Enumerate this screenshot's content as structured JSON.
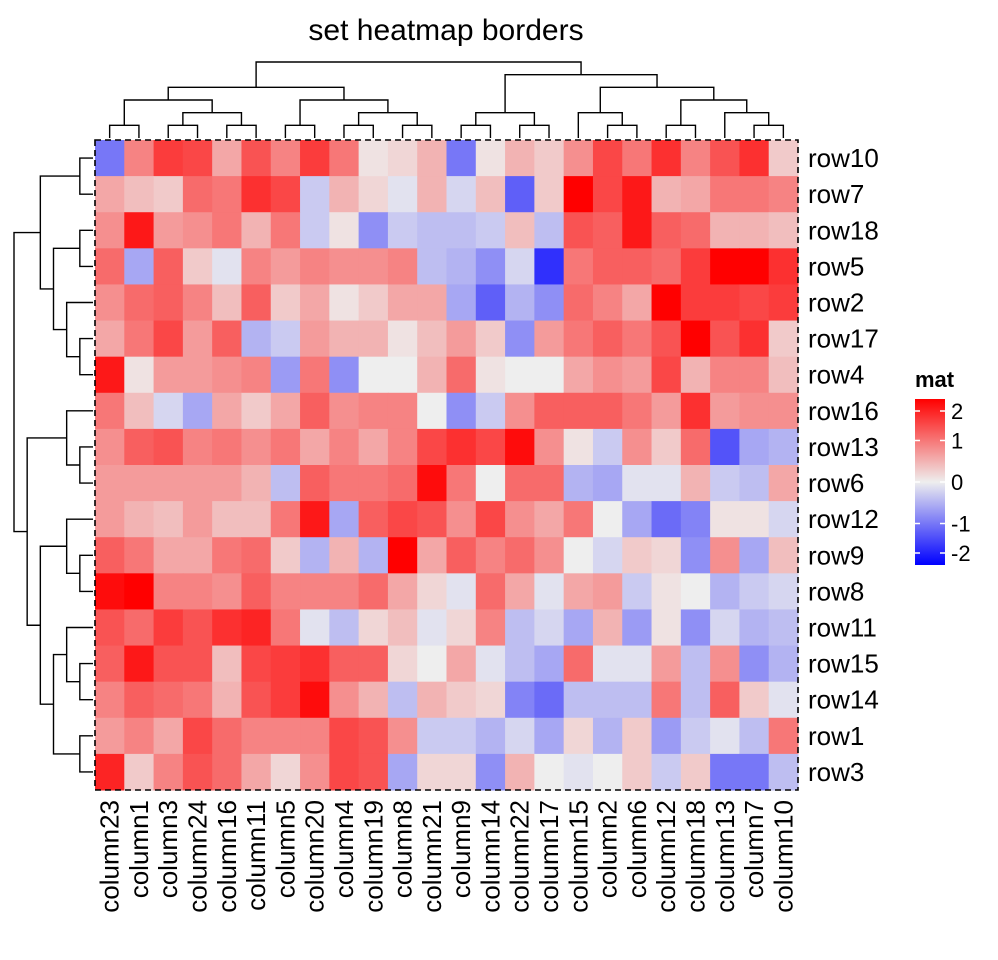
{
  "chart_data": {
    "type": "heatmap",
    "title": "set heatmap borders",
    "columns": [
      "column23",
      "column1",
      "column3",
      "column24",
      "column16",
      "column11",
      "column5",
      "column20",
      "column4",
      "column19",
      "column8",
      "column21",
      "column9",
      "column14",
      "column22",
      "column17",
      "column15",
      "column2",
      "column6",
      "column12",
      "column18",
      "column13",
      "column7",
      "column10"
    ],
    "rows": [
      "row10",
      "row7",
      "row18",
      "row5",
      "row2",
      "row17",
      "row4",
      "row16",
      "row13",
      "row6",
      "row12",
      "row9",
      "row8",
      "row11",
      "row15",
      "row14",
      "row1",
      "row3"
    ],
    "values": [
      [
        -1.0,
        0.9,
        1.5,
        1.4,
        0.6,
        1.3,
        0.9,
        1.5,
        1.0,
        0.1,
        0.2,
        0.5,
        -1.0,
        0.1,
        0.5,
        0.3,
        0.8,
        1.4,
        1.0,
        1.6,
        0.9,
        1.3,
        1.6,
        0.3
      ],
      [
        0.6,
        0.4,
        0.3,
        1.1,
        1.0,
        1.6,
        1.4,
        -0.3,
        0.5,
        0.2,
        -0.1,
        0.5,
        -0.2,
        0.4,
        -1.2,
        0.3,
        2.2,
        1.4,
        1.8,
        0.5,
        0.6,
        1.0,
        1.0,
        0.9
      ],
      [
        0.8,
        1.8,
        0.7,
        0.8,
        1.0,
        0.5,
        1.0,
        -0.3,
        0.1,
        -0.8,
        -0.3,
        -0.4,
        -0.4,
        -0.3,
        0.4,
        -0.4,
        1.3,
        1.2,
        1.8,
        1.2,
        1.1,
        0.5,
        0.5,
        0.4
      ],
      [
        1.1,
        -0.6,
        1.2,
        0.3,
        -0.1,
        0.9,
        0.7,
        0.9,
        0.8,
        0.8,
        0.9,
        -0.4,
        -0.5,
        -0.8,
        -0.2,
        -1.6,
        1.0,
        1.2,
        1.2,
        1.1,
        1.5,
        2.1,
        2.1,
        1.6
      ],
      [
        0.8,
        1.1,
        1.2,
        0.9,
        0.4,
        1.2,
        0.3,
        0.6,
        0.1,
        0.3,
        0.6,
        0.6,
        -0.6,
        -1.2,
        -0.5,
        -0.8,
        1.1,
        0.9,
        0.6,
        2.0,
        1.5,
        1.5,
        1.4,
        1.5
      ],
      [
        0.6,
        1.0,
        1.4,
        0.7,
        1.2,
        -0.5,
        -0.3,
        0.7,
        0.5,
        0.5,
        0.1,
        0.4,
        0.7,
        0.3,
        -0.8,
        0.7,
        1.0,
        1.2,
        1.0,
        1.3,
        2.2,
        1.3,
        1.6,
        0.3
      ],
      [
        1.8,
        0.1,
        0.7,
        0.7,
        0.8,
        0.9,
        -0.7,
        1.0,
        -0.8,
        0.0,
        0.0,
        0.5,
        1.1,
        0.1,
        0.0,
        0.0,
        0.6,
        0.8,
        0.7,
        1.4,
        0.5,
        0.9,
        0.9,
        0.4
      ],
      [
        1.0,
        0.4,
        -0.2,
        -0.6,
        0.6,
        0.3,
        0.6,
        1.2,
        0.8,
        0.9,
        0.9,
        0.0,
        -0.8,
        -0.3,
        0.8,
        1.2,
        1.2,
        1.2,
        1.0,
        0.7,
        1.6,
        0.7,
        0.8,
        0.8
      ],
      [
        0.8,
        1.2,
        1.3,
        0.9,
        1.0,
        0.8,
        1.0,
        0.6,
        0.9,
        0.6,
        0.9,
        1.4,
        1.6,
        1.4,
        1.9,
        0.8,
        0.1,
        -0.3,
        0.8,
        0.3,
        1.1,
        -1.3,
        -0.6,
        -0.5
      ],
      [
        0.7,
        0.7,
        0.7,
        0.7,
        0.7,
        0.5,
        -0.4,
        1.2,
        1.0,
        1.0,
        1.1,
        1.9,
        1.0,
        0.0,
        1.1,
        1.1,
        -0.5,
        -0.6,
        -0.1,
        -0.1,
        0.5,
        -0.3,
        -0.4,
        0.6
      ],
      [
        0.7,
        0.5,
        0.4,
        0.7,
        0.4,
        0.4,
        1.0,
        1.8,
        -0.6,
        1.2,
        1.4,
        1.3,
        0.8,
        1.4,
        0.8,
        0.6,
        1.0,
        0.0,
        -0.6,
        -1.1,
        -0.9,
        0.1,
        0.1,
        -0.2
      ],
      [
        1.2,
        1.0,
        0.6,
        0.6,
        1.0,
        1.1,
        0.3,
        -0.5,
        0.5,
        -0.5,
        2.0,
        0.6,
        1.2,
        0.9,
        1.1,
        0.8,
        0.0,
        -0.2,
        0.3,
        0.2,
        -0.8,
        0.8,
        -0.6,
        0.4
      ],
      [
        1.9,
        2.2,
        0.9,
        0.9,
        0.8,
        1.2,
        0.9,
        0.9,
        0.9,
        1.1,
        0.6,
        0.2,
        -0.1,
        1.1,
        0.6,
        -0.1,
        0.6,
        0.7,
        -0.3,
        0.1,
        0.0,
        -0.5,
        -0.3,
        -0.2
      ],
      [
        1.3,
        1.1,
        1.5,
        1.3,
        1.6,
        1.7,
        1.0,
        -0.1,
        -0.4,
        0.2,
        0.4,
        -0.1,
        0.2,
        0.9,
        -0.4,
        -0.2,
        -0.6,
        0.5,
        -0.7,
        0.1,
        -0.8,
        -0.2,
        -0.5,
        -0.4
      ],
      [
        1.2,
        1.8,
        1.3,
        1.3,
        0.4,
        1.4,
        1.5,
        1.6,
        1.2,
        1.2,
        0.2,
        0.0,
        0.6,
        -0.1,
        -0.4,
        -0.6,
        1.1,
        -0.1,
        -0.1,
        0.7,
        -0.4,
        0.8,
        -0.8,
        -0.5
      ],
      [
        0.9,
        1.2,
        1.1,
        1.0,
        0.5,
        1.3,
        1.5,
        1.9,
        0.8,
        0.5,
        -0.4,
        0.5,
        0.3,
        0.2,
        -0.9,
        -1.1,
        -0.4,
        -0.4,
        -0.4,
        1.0,
        -0.4,
        1.2,
        0.3,
        -0.1
      ],
      [
        0.7,
        0.9,
        0.6,
        1.4,
        1.1,
        0.9,
        0.9,
        0.9,
        1.4,
        1.3,
        0.8,
        -0.3,
        -0.3,
        -0.5,
        -0.2,
        -0.6,
        0.2,
        -0.5,
        0.3,
        -0.7,
        -0.3,
        -0.1,
        -0.4,
        1.0
      ],
      [
        1.7,
        0.3,
        0.9,
        1.3,
        1.1,
        0.6,
        0.2,
        0.8,
        1.4,
        1.3,
        -0.6,
        0.2,
        0.2,
        -0.8,
        0.5,
        0.0,
        -0.1,
        0.0,
        0.3,
        -0.3,
        0.3,
        -1.0,
        -1.0,
        -0.4
      ]
    ],
    "legend": {
      "title": "mat",
      "ticks": [
        2,
        1,
        0,
        -1,
        -2
      ],
      "tick_labels": [
        "2",
        "1",
        "0",
        "-1",
        "-2"
      ],
      "color_low": "#0000FF",
      "color_mid": "#EEEEEE",
      "color_high": "#FF0000",
      "placement": "right"
    },
    "border": "dashed",
    "column_dendrogram": "top",
    "row_dendrogram": "left"
  }
}
